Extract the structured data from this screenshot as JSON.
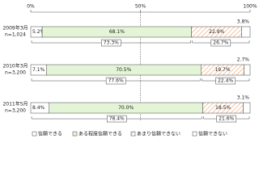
{
  "chart_data": {
    "type": "stacked-bar-horizontal",
    "categories": [
      "2009年3月",
      "2010年3月",
      "2011年5月"
    ],
    "category_notes": [
      "n=1,024",
      "n=3,200",
      "n=3,200"
    ],
    "series": [
      {
        "name": "信頼できる",
        "color": "#ffffff",
        "values": [
          5.2,
          7.1,
          8.4
        ],
        "value_labels": [
          "5.2%",
          "7.1%",
          "8.4%"
        ]
      },
      {
        "name": "ある程度信頼できる",
        "color": "#e3f4d7",
        "values": [
          68.1,
          70.5,
          70.0
        ],
        "value_labels": [
          "68.1%",
          "70.5%",
          "70.0%"
        ]
      },
      {
        "name": "あまり信頼できない",
        "color": "#f0a064",
        "hatch": true,
        "values": [
          22.9,
          19.7,
          18.5
        ],
        "value_labels": [
          "22.9%",
          "19.7%",
          "18.5%"
        ]
      },
      {
        "name": "信頼できない",
        "color": "#ffffff",
        "values": [
          3.8,
          2.7,
          3.1
        ],
        "value_labels": [
          "3.8%",
          "2.7%",
          "3.1%"
        ]
      }
    ],
    "group_totals": [
      [
        73.3,
        26.7
      ],
      [
        77.6,
        22.4
      ],
      [
        78.4,
        21.6
      ]
    ],
    "group_total_labels": [
      [
        "73.3%",
        "26.7%"
      ],
      [
        "77.6%",
        "22.4%"
      ],
      [
        "78.4%",
        "21.6%"
      ]
    ],
    "xlim": [
      0,
      100
    ],
    "xticks": [
      {
        "value": 0,
        "label": "0%"
      },
      {
        "value": 50,
        "label": "50%"
      },
      {
        "value": 100,
        "label": "100%"
      }
    ],
    "grid": true
  }
}
